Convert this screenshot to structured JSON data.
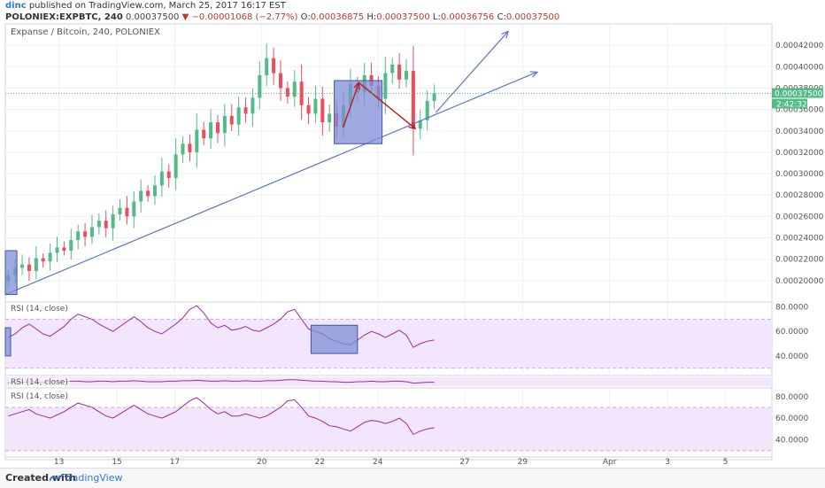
{
  "header": {
    "user": "dinc",
    "published": "published on TradingView.com, March 25, 2017 16:17 EST",
    "symbol": "POLONIEX:EXPBTC, 240",
    "price": "0.00037500",
    "change": "▼ −0.00001068 (−2.77%)",
    "o_label": "O:",
    "o": "0.00036875",
    "h_label": "H:",
    "h": "0.00037500",
    "l_label": "L:",
    "l": "0.00036756",
    "c_label": "C:",
    "c": "0.00037500"
  },
  "chart_title": "Expanse / Bitcoin, 240, POLONIEX",
  "rsi_label": "RSI (14, close)",
  "price_tag": "0.00037500",
  "time_tag": "2:42:32",
  "footer": {
    "created": "Created with",
    "brand": "TradingView"
  },
  "colors": {
    "up": "#53b987",
    "down": "#eb4d5c",
    "trend": "#5b76c4",
    "rsi": "#9c27b0",
    "box": "#7f8fd6",
    "arrow": "#b71c1c"
  },
  "chart_data": [
    {
      "type": "candlestick",
      "title": "Expanse / Bitcoin, 240, POLONIEX",
      "ylim": [
        0.00018,
        0.00044
      ],
      "y_ticks": [
        "0.00042000",
        "0.00040000",
        "0.00038000",
        "0.00036000",
        "0.00034000",
        "0.00032000",
        "0.00030000",
        "0.00028000",
        "0.00026000",
        "0.00024000",
        "0.00022000",
        "0.00020000"
      ],
      "y_tick_values": [
        0.00042,
        0.0004,
        0.00038,
        0.00036,
        0.00034,
        0.00032,
        0.0003,
        0.00028,
        0.00026,
        0.00024,
        0.00022,
        0.0002
      ],
      "x_ticks": [
        "13",
        "15",
        "17",
        "20",
        "22",
        "24",
        "27",
        "29",
        "Apr",
        "3",
        "5"
      ],
      "x_tick_days": [
        13,
        15,
        17,
        20,
        22,
        24,
        27,
        29,
        32,
        34,
        36
      ],
      "x_range_days": [
        11.15,
        37.6
      ],
      "last_price": 0.000375,
      "closes": [
        0.000205,
        0.000212,
        0.000215,
        0.000209,
        0.000221,
        0.000218,
        0.000226,
        0.000231,
        0.000228,
        0.000238,
        0.000246,
        0.000241,
        0.00025,
        0.000256,
        0.000249,
        0.000262,
        0.000268,
        0.00026,
        0.000274,
        0.000284,
        0.000279,
        0.000289,
        0.000302,
        0.000296,
        0.000318,
        0.000328,
        0.00032,
        0.000341,
        0.000333,
        0.000348,
        0.000338,
        0.000354,
        0.000346,
        0.000362,
        0.000356,
        0.000371,
        0.000392,
        0.000408,
        0.000394,
        0.00038,
        0.000372,
        0.000386,
        0.000364,
        0.000356,
        0.00037,
        0.000348,
        0.000356,
        0.000344,
        0.000364,
        0.000384,
        0.000376,
        0.000392,
        0.000382,
        0.00037,
        0.000394,
        0.000402,
        0.000388,
        0.000396,
        0.000342,
        0.00035,
        0.000368,
        0.000375
      ]
    },
    {
      "type": "line",
      "title": "RSI (14, close)",
      "ylim": [
        24,
        84
      ],
      "y_ticks": [
        "80.0000",
        "60.0000",
        "40.0000"
      ],
      "y_tick_values": [
        80,
        60,
        40
      ],
      "band": [
        30,
        70
      ],
      "values": [
        55,
        58,
        63,
        66,
        62,
        58,
        56,
        60,
        64,
        70,
        74,
        72,
        70,
        66,
        63,
        60,
        64,
        68,
        72,
        68,
        63,
        60,
        58,
        62,
        66,
        71,
        78,
        81,
        75,
        67,
        63,
        65,
        61,
        62,
        64,
        61,
        60,
        63,
        66,
        70,
        76,
        78,
        70,
        62,
        60,
        58,
        54,
        52,
        50,
        49,
        53,
        57,
        60,
        58,
        55,
        58,
        61,
        57,
        47,
        50,
        52,
        53
      ]
    },
    {
      "type": "line",
      "title": "RSI (14, close)",
      "values": [
        56,
        57,
        57,
        58,
        57,
        57,
        58,
        58,
        58,
        59,
        59,
        58,
        58,
        59,
        59,
        58,
        59,
        59,
        60,
        59,
        58,
        58,
        58,
        59,
        59,
        60,
        60,
        61,
        60,
        59,
        59,
        60,
        59,
        59,
        60,
        59,
        59,
        60,
        60,
        61,
        62,
        62,
        61,
        60,
        59,
        59,
        58,
        58,
        57,
        57,
        58,
        58,
        59,
        58,
        58,
        59,
        59,
        58,
        55,
        56,
        57,
        57
      ]
    },
    {
      "type": "line",
      "title": "RSI (14, close)",
      "ylim": [
        24,
        88
      ],
      "y_ticks": [
        "80.0000",
        "60.0000",
        "40.0000"
      ],
      "y_tick_values": [
        80,
        60,
        40
      ],
      "band": [
        30,
        70
      ],
      "values": [
        62,
        64,
        66,
        68,
        64,
        62,
        60,
        63,
        66,
        70,
        74,
        72,
        70,
        66,
        62,
        60,
        64,
        68,
        72,
        68,
        64,
        62,
        60,
        63,
        66,
        71,
        76,
        79,
        74,
        68,
        64,
        66,
        62,
        62,
        64,
        62,
        60,
        62,
        66,
        70,
        76,
        77,
        70,
        62,
        60,
        57,
        53,
        52,
        50,
        48,
        52,
        56,
        58,
        57,
        55,
        57,
        60,
        55,
        45,
        48,
        50,
        51
      ]
    }
  ]
}
